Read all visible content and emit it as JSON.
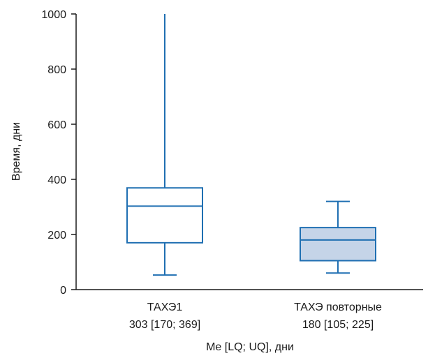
{
  "chart_data": {
    "type": "box",
    "title": "",
    "xlabel": "Me [LQ; UQ], дни",
    "ylabel": "Время, дни",
    "ylim": [
      0,
      1000
    ],
    "yticks": [
      0,
      200,
      400,
      600,
      800,
      1000
    ],
    "grid": false,
    "categories": [
      {
        "line1": "ТАХЭ1",
        "line2": "303 [170; 369]"
      },
      {
        "line1": "ТАХЭ повторные",
        "line2": "180 [105; 225]"
      }
    ],
    "boxes": [
      {
        "min": 53,
        "q1": 170,
        "median": 303,
        "q3": 369,
        "max": 1000,
        "fill": "#ffffff"
      },
      {
        "min": 60,
        "q1": 105,
        "median": 180,
        "q3": 225,
        "max": 320,
        "fill": "#c5d4e8"
      }
    ],
    "line_color": "#1f6fb2",
    "axis_color": "#1a1a1a"
  }
}
